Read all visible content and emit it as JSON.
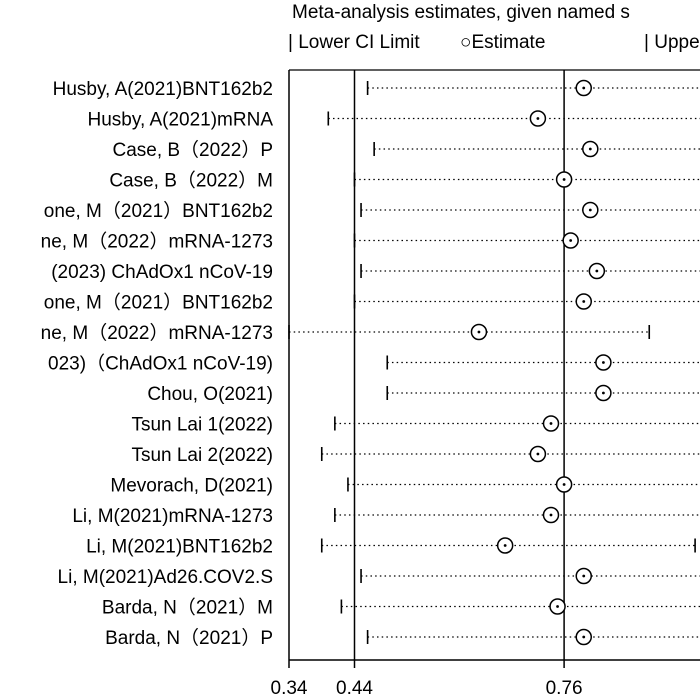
{
  "chart_data": {
    "type": "forest",
    "title": "Meta-analysis estimates, given named s",
    "legend": {
      "lower": "Lower CI Limit",
      "estimate": "Estimate",
      "upper": "Uppe"
    },
    "xticks": [
      0.34,
      0.44,
      0.76
    ],
    "reference_lines": [
      0.44,
      0.76
    ],
    "studies": [
      {
        "label": "Husby, A(2021)BNT162b2",
        "lower": 0.46,
        "estimate": 0.79
      },
      {
        "label": "Husby, A(2021)mRNA",
        "lower": 0.4,
        "estimate": 0.72
      },
      {
        "label": "Case, B（2022）P",
        "lower": 0.47,
        "estimate": 0.8
      },
      {
        "label": "Case, B（2022）M",
        "lower": 0.44,
        "estimate": 0.76
      },
      {
        "label": "one, M（2021）BNT162b2",
        "lower": 0.45,
        "estimate": 0.8
      },
      {
        "label": "ne, M（2022）mRNA-1273",
        "lower": 0.44,
        "estimate": 0.77
      },
      {
        "label": "(2023) ChAdOx1 nCoV-19",
        "lower": 0.45,
        "estimate": 0.81
      },
      {
        "label": "one, M（2021）BNT162b2",
        "lower": 0.44,
        "estimate": 0.79
      },
      {
        "label": "ne, M（2022）mRNA-1273",
        "lower": 0.34,
        "estimate": 0.63,
        "upper": 0.89
      },
      {
        "label": "023)（ChAdOx1 nCoV-19)",
        "lower": 0.49,
        "estimate": 0.82
      },
      {
        "label": "Chou, O(2021)",
        "lower": 0.49,
        "estimate": 0.82
      },
      {
        "label": "Tsun Lai  1(2022)",
        "lower": 0.41,
        "estimate": 0.74
      },
      {
        "label": "Tsun Lai  2(2022)",
        "lower": 0.39,
        "estimate": 0.72
      },
      {
        "label": "Mevorach, D(2021)",
        "lower": 0.43,
        "estimate": 0.76
      },
      {
        "label": "Li, M(2021)mRNA-1273",
        "lower": 0.41,
        "estimate": 0.74
      },
      {
        "label": "Li, M(2021)BNT162b2",
        "lower": 0.39,
        "estimate": 0.67,
        "upper": 0.96
      },
      {
        "label": "Li, M(2021)Ad26.COV2.S",
        "lower": 0.45,
        "estimate": 0.79
      },
      {
        "label": "Barda, N（2021）M",
        "lower": 0.42,
        "estimate": 0.75
      },
      {
        "label": "Barda, N（2021）P",
        "lower": 0.46,
        "estimate": 0.79
      }
    ]
  }
}
